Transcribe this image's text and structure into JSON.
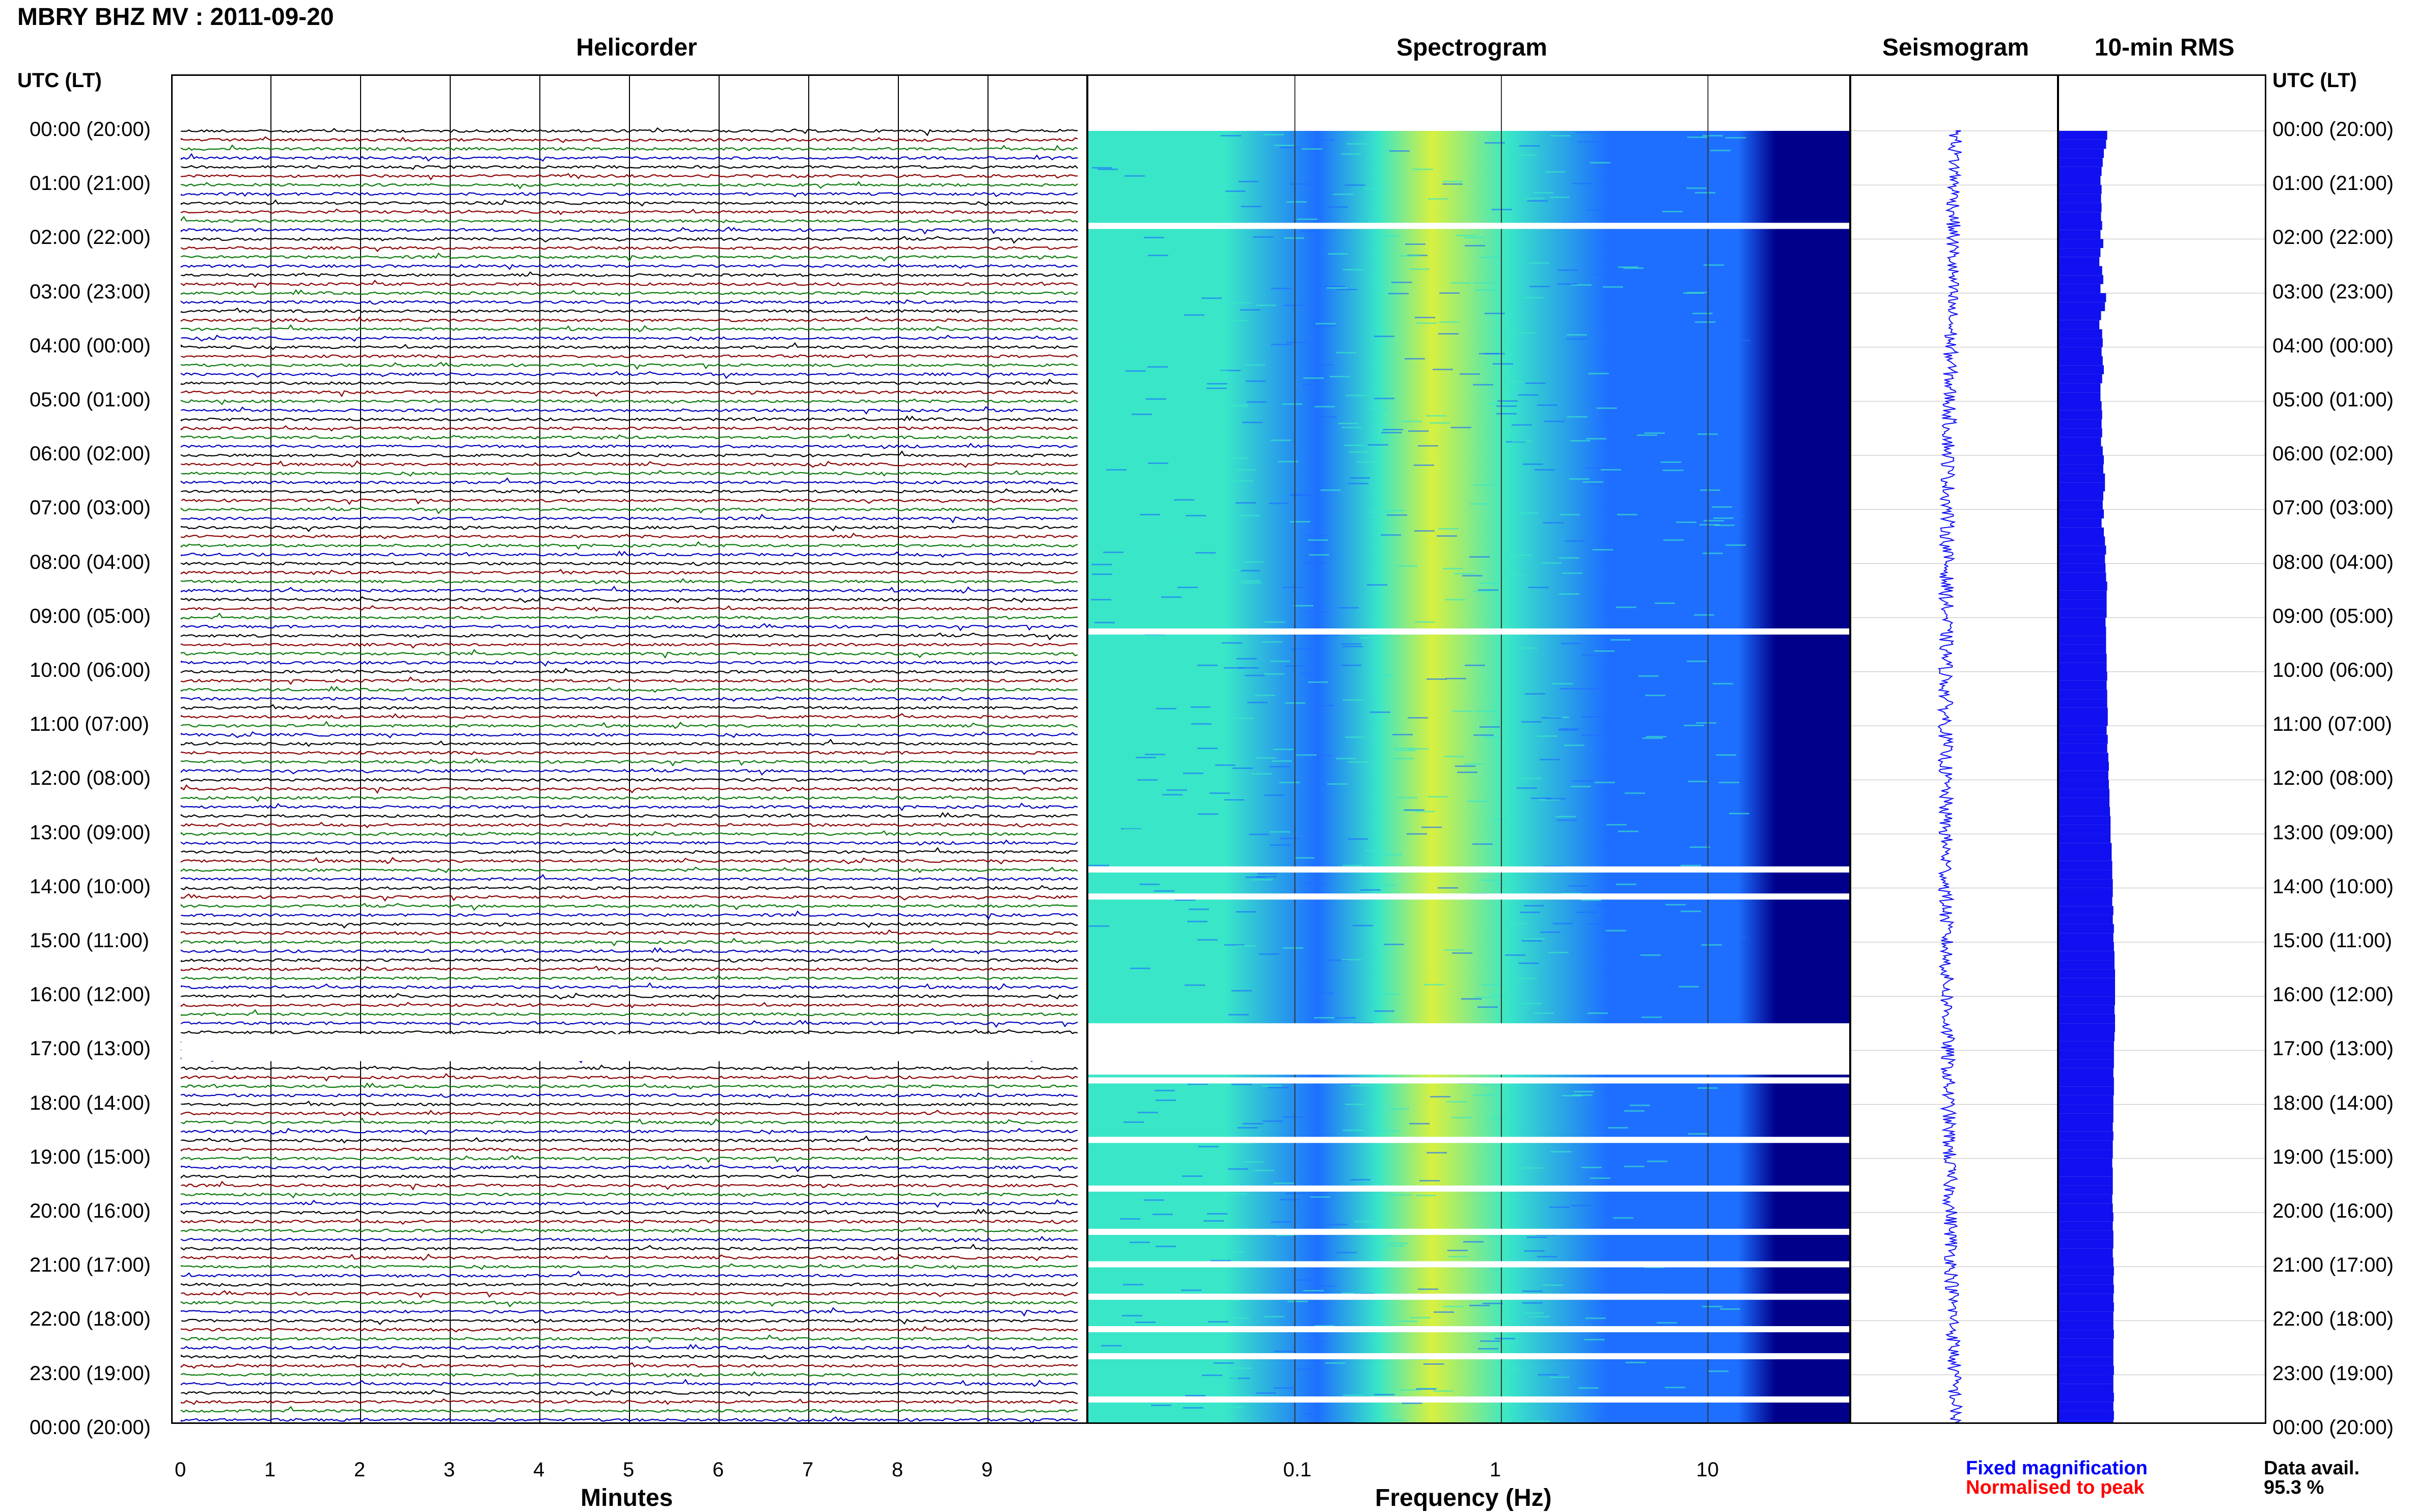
{
  "header": {
    "title": "MBRY BHZ MV : 2011-09-20"
  },
  "panels": {
    "helicorder": "Helicorder",
    "spectrogram": "Spectrogram",
    "seismogram": "Seismogram",
    "rms": "10-min RMS"
  },
  "time_axis_label": "UTC (LT)",
  "footer": {
    "fixed": "Fixed magnification",
    "normalised": "Normalised to peak",
    "avail_label": "Data avail.",
    "avail_value": "95.3 %"
  },
  "colors": {
    "trace_cycle": [
      "#000000",
      "#8b0000",
      "#0a7a0a",
      "#0000c0"
    ],
    "spec_low": "#00008b",
    "spec_mid": "#1e6fff",
    "spec_high": "#39e6c8",
    "spec_peak": "#d8f040",
    "rms_fill": "#1010f0",
    "fixed_text": "#0000ff",
    "normalised_text": "#ff0000"
  },
  "chart_data": [
    {
      "type": "line",
      "title": "Helicorder",
      "xlabel": "Minutes",
      "ticks": [
        "0",
        "1",
        "2",
        "3",
        "4",
        "5",
        "6",
        "7",
        "8",
        "9"
      ],
      "xlim": [
        0,
        10
      ],
      "rows_per_hour": 6,
      "hours": [
        "00:00 (20:00)",
        "01:00 (21:00)",
        "02:00 (22:00)",
        "03:00 (23:00)",
        "04:00 (00:00)",
        "05:00 (01:00)",
        "06:00 (02:00)",
        "07:00 (03:00)",
        "08:00 (04:00)",
        "09:00 (05:00)",
        "10:00 (06:00)",
        "11:00 (07:00)",
        "12:00 (08:00)",
        "13:00 (09:00)",
        "14:00 (10:00)",
        "15:00 (11:00)",
        "16:00 (12:00)",
        "17:00 (13:00)",
        "18:00 (14:00)",
        "19:00 (15:00)",
        "20:00 (16:00)",
        "21:00 (17:00)",
        "22:00 (18:00)",
        "23:00 (19:00)",
        "00:00 (20:00)"
      ]
    },
    {
      "type": "heatmap",
      "title": "Spectrogram",
      "xlabel": "Frequency (Hz)",
      "xscale": "log",
      "xlim": [
        0.01,
        50
      ],
      "ticks": [
        "0.1",
        "1",
        "10"
      ],
      "gaps_utc_hours": [
        1.7,
        9.2,
        13.6,
        14.1,
        16.5,
        17.0,
        17.5,
        18.6,
        19.5,
        20.3,
        20.9,
        21.5,
        22.1,
        22.6,
        23.4
      ]
    },
    {
      "type": "line",
      "title": "Seismogram",
      "description_scale": "Fixed magnification"
    },
    {
      "type": "bar",
      "title": "10-min RMS",
      "unit_scale": "Normalised to peak",
      "values": [
        0.86,
        0.84,
        0.8,
        0.78,
        0.76,
        0.74,
        0.76,
        0.75,
        0.76,
        0.75,
        0.77,
        0.74,
        0.79,
        0.74,
        0.72,
        0.77,
        0.79,
        0.74,
        0.84,
        0.82,
        0.75,
        0.72,
        0.77,
        0.78,
        0.76,
        0.78,
        0.8,
        0.77,
        0.74,
        0.74,
        0.76,
        0.77,
        0.76,
        0.77,
        0.75,
        0.78,
        0.8,
        0.79,
        0.82,
        0.82,
        0.79,
        0.78,
        0.8,
        0.76,
        0.8,
        0.82,
        0.84,
        0.82,
        0.83,
        0.84,
        0.86,
        0.85,
        0.85,
        0.85,
        0.83,
        0.84,
        0.84,
        0.84,
        0.85,
        0.85,
        0.86,
        0.85,
        0.86,
        0.86,
        0.87,
        0.87,
        0.85,
        0.87,
        0.86,
        0.88,
        0.89,
        0.88,
        0.89,
        0.9,
        0.9,
        0.91,
        0.92,
        0.92,
        0.92,
        0.94,
        0.94,
        0.95,
        0.95,
        0.96,
        0.96,
        0.95,
        0.97,
        0.96,
        0.98,
        0.97,
        0.98,
        0.99,
        0.99,
        1.0,
        1.0,
        1.0,
        1.0,
        0.99,
        1.0,
        1.0,
        0.99,
        0.98,
        0.98,
        0.98,
        0.97,
        0.98,
        0.98,
        0.97,
        0.97,
        0.97,
        0.96,
        0.97,
        0.96,
        0.96,
        0.95,
        0.96,
        0.96,
        0.96,
        0.95,
        0.96,
        0.97,
        0.96,
        0.97,
        0.97,
        0.96,
        0.97,
        0.98,
        0.97,
        0.98,
        0.97,
        0.98,
        0.97,
        0.97,
        0.98,
        0.97,
        0.97,
        0.97,
        0.98,
        0.97,
        0.97,
        0.98,
        0.97,
        0.98,
        0.97
      ]
    }
  ]
}
